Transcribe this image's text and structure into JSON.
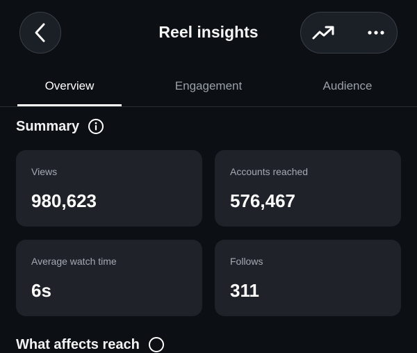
{
  "header": {
    "title": "Reel insights"
  },
  "tabs": [
    {
      "label": "Overview",
      "active": true
    },
    {
      "label": "Engagement",
      "active": false
    },
    {
      "label": "Audience",
      "active": false
    }
  ],
  "summary": {
    "title": "Summary",
    "cards": [
      {
        "label": "Views",
        "value": "980,623"
      },
      {
        "label": "Accounts reached",
        "value": "576,467"
      },
      {
        "label": "Average watch time",
        "value": "6s"
      },
      {
        "label": "Follows",
        "value": "311"
      }
    ]
  },
  "next_section": {
    "title": "What affects reach"
  },
  "icons": {
    "back": "chevron-left-icon",
    "trend": "trending-up-icon",
    "more": "more-horizontal-icon",
    "info": "info-icon"
  },
  "colors": {
    "background": "#0c0f14",
    "card": "#1f2229",
    "muted_text": "#9aa0a8",
    "accent_line": "#ffffff"
  }
}
